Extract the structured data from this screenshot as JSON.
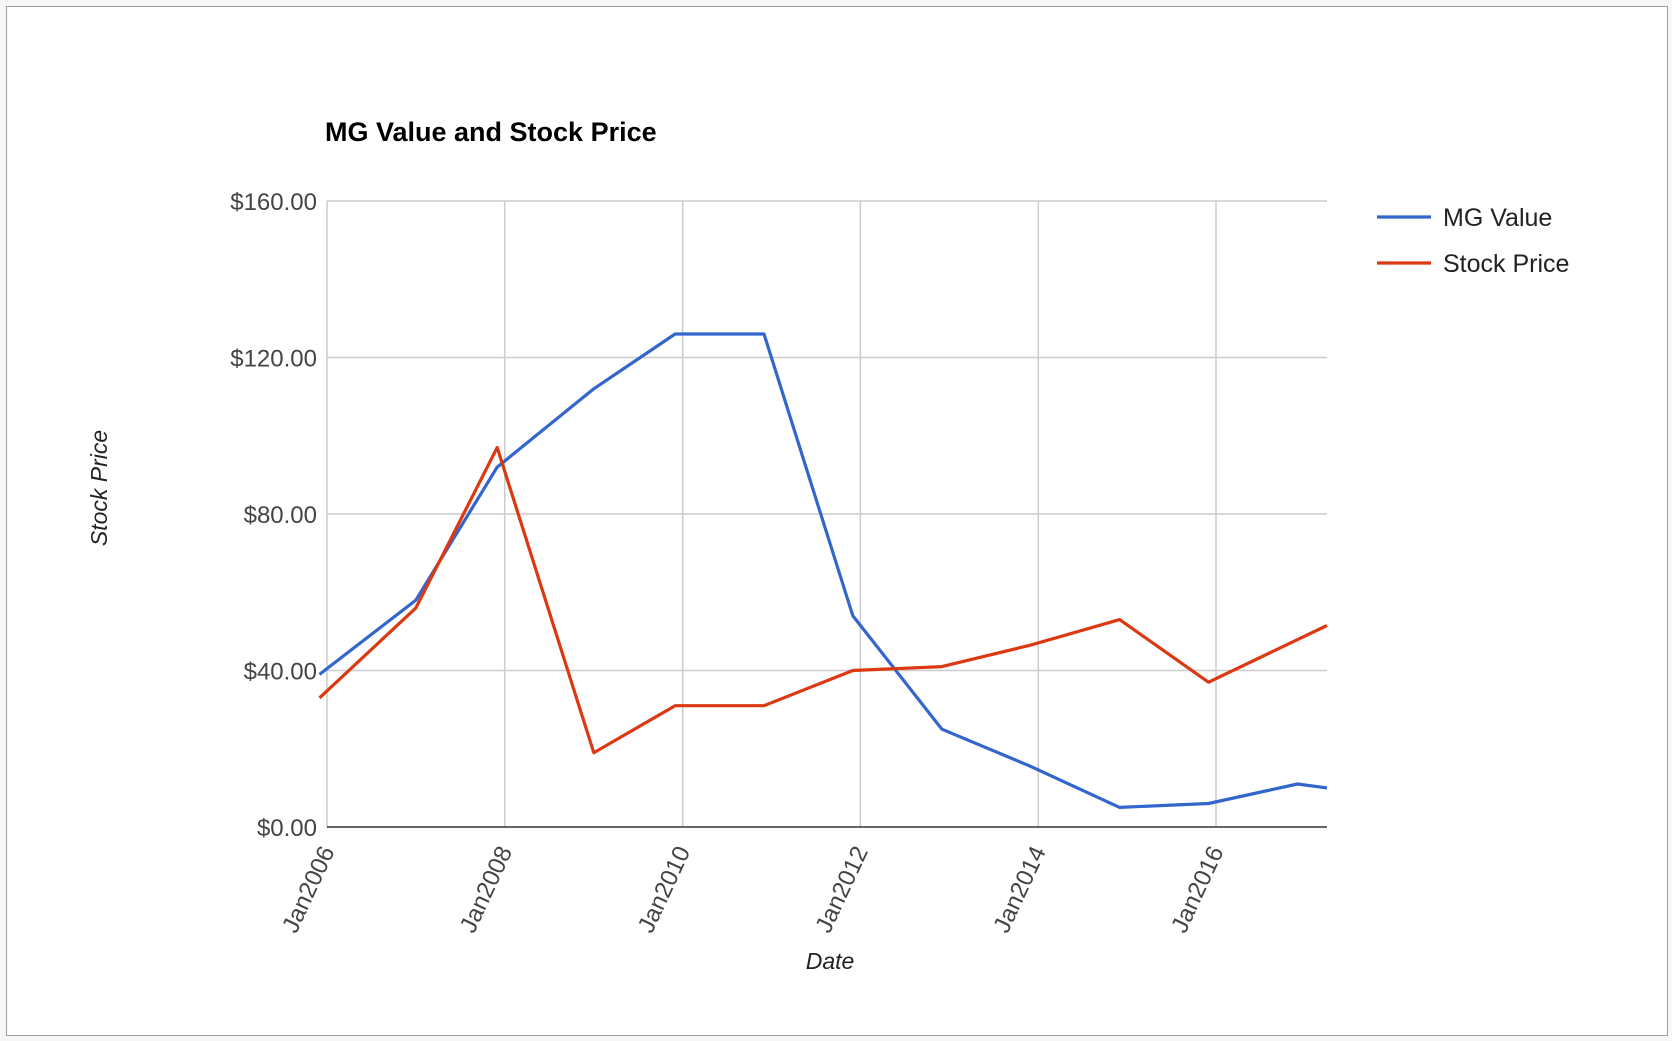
{
  "chart_data": {
    "type": "line",
    "title": "MG Value and Stock Price",
    "xlabel": "Date",
    "ylabel": "Stock Price",
    "x_ticks": [
      "Jan2006",
      "Jan2008",
      "Jan2010",
      "Jan2012",
      "Jan2014",
      "Jan2016"
    ],
    "y_ticks": [
      "$0.00",
      "$40.00",
      "$80.00",
      "$120.00",
      "$160.00"
    ],
    "ylim": [
      0,
      160
    ],
    "xlim": [
      "2006-01-01",
      "2017-04-01"
    ],
    "grid": true,
    "legend_position": "right",
    "series": [
      {
        "name": "MG Value",
        "color": "#3366cc",
        "points": [
          {
            "x": "2005-12-01",
            "y": 39
          },
          {
            "x": "2007-01-01",
            "y": 58
          },
          {
            "x": "2007-12-01",
            "y": 92
          },
          {
            "x": "2009-01-01",
            "y": 112
          },
          {
            "x": "2009-12-01",
            "y": 126
          },
          {
            "x": "2010-12-01",
            "y": 126
          },
          {
            "x": "2011-12-01",
            "y": 54
          },
          {
            "x": "2012-12-01",
            "y": 25
          },
          {
            "x": "2013-12-01",
            "y": 15.5
          },
          {
            "x": "2014-12-01",
            "y": 5
          },
          {
            "x": "2015-12-01",
            "y": 6
          },
          {
            "x": "2016-12-01",
            "y": 11
          },
          {
            "x": "2017-04-01",
            "y": 10
          }
        ]
      },
      {
        "name": "Stock Price",
        "color": "#dc3912",
        "points": [
          {
            "x": "2005-12-01",
            "y": 33
          },
          {
            "x": "2007-01-01",
            "y": 56
          },
          {
            "x": "2007-12-01",
            "y": 97
          },
          {
            "x": "2009-01-01",
            "y": 19
          },
          {
            "x": "2009-12-01",
            "y": 31
          },
          {
            "x": "2010-12-01",
            "y": 31
          },
          {
            "x": "2011-12-01",
            "y": 40
          },
          {
            "x": "2012-12-01",
            "y": 41
          },
          {
            "x": "2013-12-01",
            "y": 46.5
          },
          {
            "x": "2014-12-01",
            "y": 53
          },
          {
            "x": "2015-12-01",
            "y": 37
          },
          {
            "x": "2017-04-01",
            "y": 51.5
          }
        ]
      }
    ]
  }
}
